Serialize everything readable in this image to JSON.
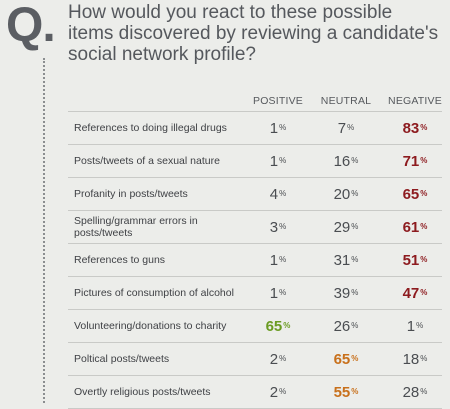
{
  "q_mark": "Q.",
  "question": "How would you react to these possible items discovered by reviewing a candidate's social network profile?",
  "colors": {
    "negative_highlight": "#8d1b1f",
    "positive_highlight": "#6a9b22",
    "neutral_highlight": "#c8701b"
  },
  "chart_data": {
    "type": "table",
    "columns": [
      "POSITIVE",
      "NEUTRAL",
      "NEGATIVE"
    ],
    "unit": "%",
    "rows": [
      {
        "label": "References to doing illegal drugs",
        "positive": 1,
        "neutral": 7,
        "negative": 83,
        "highlight": "negative"
      },
      {
        "label": "Posts/tweets of a sexual nature",
        "positive": 1,
        "neutral": 16,
        "negative": 71,
        "highlight": "negative"
      },
      {
        "label": "Profanity in posts/tweets",
        "positive": 4,
        "neutral": 20,
        "negative": 65,
        "highlight": "negative"
      },
      {
        "label": "Spelling/grammar errors in posts/tweets",
        "positive": 3,
        "neutral": 29,
        "negative": 61,
        "highlight": "negative"
      },
      {
        "label": "References to guns",
        "positive": 1,
        "neutral": 31,
        "negative": 51,
        "highlight": "negative"
      },
      {
        "label": "Pictures of consumption of alcohol",
        "positive": 1,
        "neutral": 39,
        "negative": 47,
        "highlight": "negative"
      },
      {
        "label": "Volunteering/donations to charity",
        "positive": 65,
        "neutral": 26,
        "negative": 1,
        "highlight": "positive"
      },
      {
        "label": "Poltical posts/tweets",
        "positive": 2,
        "neutral": 65,
        "negative": 18,
        "highlight": "neutral"
      },
      {
        "label": "Overtly religious posts/tweets",
        "positive": 2,
        "neutral": 55,
        "negative": 28,
        "highlight": "neutral"
      }
    ]
  }
}
